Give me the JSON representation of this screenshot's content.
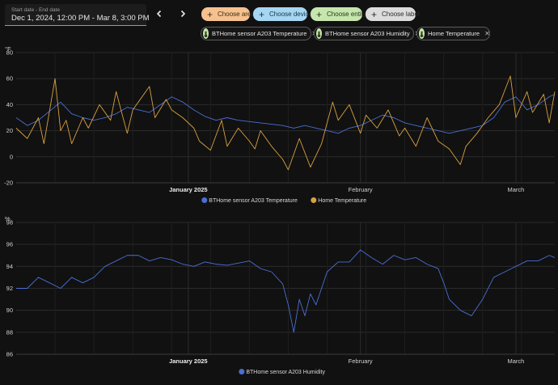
{
  "date_picker": {
    "label": "Start date - End date",
    "value": "Dec 1, 2024, 12:00 PM - Mar 8, 3:00 PM"
  },
  "nav": {
    "prev_icon": "chevron-left-icon",
    "next_icon": "chevron-right-icon"
  },
  "chips": {
    "area": "Choose area",
    "device": "Choose device",
    "entity": "Choose entity",
    "label": "Choose label"
  },
  "selected_entities": [
    {
      "name": "BTHome sensor A203 Temperature",
      "icon": "thermometer-icon"
    },
    {
      "name": "BTHome sensor A203 Humidity",
      "icon": "thermometer-icon"
    },
    {
      "name": "Home Temperature",
      "icon": "thermometer-icon"
    }
  ],
  "colors": {
    "blue": "#4a6fd4",
    "orange": "#d8a140",
    "grid": "#2b2b2b"
  },
  "chart_data": [
    {
      "type": "line",
      "unit": "°F",
      "ylim": [
        -20,
        80
      ],
      "yticks": [
        -20,
        0,
        20,
        40,
        60,
        80
      ],
      "xlabels": [
        {
          "text": "January 2025",
          "at": 31,
          "bold": true
        },
        {
          "text": "February",
          "at": 62,
          "bold": false
        },
        {
          "text": "March",
          "at": 90,
          "bold": false
        }
      ],
      "grid": true,
      "legend_position": "bottom-center",
      "series": [
        {
          "name": "BTHome sensor A203 Temperature",
          "color": "#4a6fd4",
          "x": [
            0,
            2,
            4,
            6,
            8,
            10,
            12,
            14,
            16,
            18,
            20,
            22,
            24,
            26,
            28,
            30,
            32,
            34,
            36,
            38,
            40,
            42,
            44,
            46,
            48,
            50,
            52,
            54,
            56,
            58,
            60,
            62,
            64,
            66,
            68,
            70,
            72,
            74,
            76,
            78,
            80,
            82,
            84,
            86,
            88,
            90,
            92,
            94,
            96,
            97
          ],
          "values": [
            30,
            24,
            28,
            35,
            42,
            33,
            30,
            28,
            30,
            33,
            38,
            36,
            34,
            40,
            46,
            42,
            36,
            31,
            28,
            30,
            28,
            27,
            26,
            25,
            24,
            22,
            24,
            22,
            20,
            18,
            22,
            24,
            28,
            32,
            30,
            26,
            24,
            22,
            20,
            18,
            20,
            22,
            24,
            30,
            42,
            46,
            36,
            40,
            46,
            48
          ]
        },
        {
          "name": "Home Temperature",
          "color": "#d8a140",
          "x": [
            0,
            2,
            4,
            5,
            7,
            8,
            9,
            10,
            12,
            13,
            15,
            17,
            18,
            20,
            21,
            22,
            24,
            25,
            27,
            28,
            30,
            32,
            33,
            35,
            37,
            38,
            40,
            42,
            43,
            44,
            46,
            48,
            49,
            51,
            53,
            55,
            57,
            58,
            60,
            62,
            63,
            65,
            67,
            69,
            70,
            72,
            74,
            76,
            78,
            80,
            81,
            83,
            85,
            87,
            89,
            90,
            92,
            93,
            95,
            96,
            97
          ],
          "values": [
            22,
            14,
            30,
            10,
            60,
            20,
            28,
            10,
            30,
            22,
            40,
            28,
            50,
            18,
            36,
            42,
            54,
            30,
            44,
            36,
            30,
            22,
            12,
            5,
            28,
            8,
            22,
            12,
            6,
            20,
            8,
            -2,
            -10,
            14,
            -8,
            10,
            42,
            28,
            40,
            18,
            32,
            22,
            36,
            16,
            22,
            8,
            30,
            12,
            6,
            -6,
            8,
            18,
            30,
            40,
            62,
            30,
            50,
            34,
            48,
            26,
            50
          ]
        }
      ]
    },
    {
      "type": "line",
      "unit": "%",
      "ylim": [
        86,
        98
      ],
      "yticks": [
        86,
        88,
        90,
        92,
        94,
        96,
        98
      ],
      "xlabels": [
        {
          "text": "January 2025",
          "at": 31,
          "bold": true
        },
        {
          "text": "February",
          "at": 62,
          "bold": false
        },
        {
          "text": "March",
          "at": 90,
          "bold": false
        }
      ],
      "grid": true,
      "legend_position": "bottom-center",
      "series": [
        {
          "name": "BTHome sensor A203 Humidity",
          "color": "#4a6fd4",
          "x": [
            0,
            2,
            4,
            6,
            8,
            10,
            12,
            14,
            16,
            18,
            20,
            22,
            24,
            26,
            28,
            30,
            32,
            34,
            36,
            38,
            40,
            42,
            44,
            46,
            48,
            49,
            50,
            51,
            52,
            53,
            54,
            56,
            58,
            60,
            62,
            64,
            66,
            68,
            70,
            72,
            74,
            76,
            77,
            78,
            80,
            82,
            84,
            86,
            88,
            90,
            92,
            94,
            96,
            97
          ],
          "values": [
            92,
            92,
            93,
            92.5,
            92,
            93,
            92.5,
            93,
            94,
            94.5,
            95,
            95,
            94.5,
            94.8,
            94.6,
            94.2,
            94,
            94.4,
            94.2,
            94.1,
            94.3,
            94.5,
            93.8,
            93.5,
            92.4,
            90.5,
            88,
            91,
            89.5,
            91.5,
            90.5,
            93.5,
            94.4,
            94.4,
            95.5,
            94.8,
            94.2,
            95,
            94.6,
            94.8,
            94.2,
            93.8,
            92.5,
            91,
            90,
            89.5,
            91,
            93,
            93.5,
            94,
            94.5,
            94.5,
            95,
            94.8
          ]
        }
      ]
    }
  ]
}
